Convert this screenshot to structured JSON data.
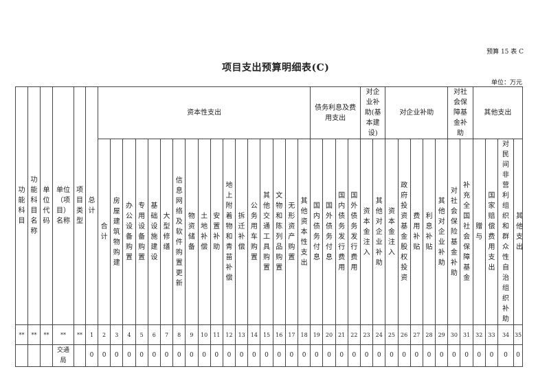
{
  "form_no": "预算 15 表 C",
  "title": "项目支出预算明细表(C)",
  "unit": "单位：万元",
  "fixed_headers": [
    "功能科目",
    "功能科目名称",
    "单位代码",
    "单位（项目）名称",
    "项目类型",
    "总计"
  ],
  "groups": [
    {
      "label": "资本性支出",
      "columns": [
        "合计",
        "房屋建筑物购建",
        "办公设备购置",
        "专用设备购置",
        "基础设施建设",
        "大型修缮",
        "信息网络及软件购置更新",
        "物资储备",
        "土地补偿",
        "安置补助",
        "地上附着物和青苗补偿",
        "拆迁补偿",
        "公务用车购置",
        "其他交通工具购置",
        "文物和陈列品购置",
        "无形资产购置",
        "其他资本性支出"
      ]
    },
    {
      "label": "债务利息及费用支出",
      "columns": [
        "国内债务付息",
        "国外债务付息",
        "国内债务发行费用",
        "国外债务发行费用"
      ]
    },
    {
      "label": "对企业补助(基本建设)",
      "columns": [
        "资本金注入",
        "其他对企业补助"
      ]
    },
    {
      "label": "对企业补助",
      "columns": [
        "资本金注入",
        "政府投资基金股权投资",
        "费用补贴",
        "利息补贴",
        "其他对企业补助"
      ]
    },
    {
      "label": "对社会保障基金补助",
      "columns": [
        "对社会保险基金补助",
        "补充全国社会保障基金"
      ]
    },
    {
      "label": "其他支出",
      "columns": [
        "赠与",
        "国家赔偿费用支出",
        "对民间非营利组织和群众性自治组织补助",
        "其他支出"
      ]
    }
  ],
  "code_row": {
    "markers": [
      "**",
      "**",
      "**",
      "**",
      "**"
    ],
    "numbers": [
      "1",
      "2",
      "3",
      "4",
      "5",
      "6",
      "7",
      "8",
      "9",
      "10",
      "11",
      "12",
      "13",
      "14",
      "15",
      "16",
      "17",
      "18",
      "19",
      "20",
      "21",
      "22",
      "23",
      "24",
      "25",
      "26",
      "27",
      "28",
      "29",
      "30",
      "31",
      "32",
      "33",
      "34",
      "35"
    ]
  },
  "rows": [
    {
      "function_code": "",
      "function_name": "",
      "unit_code": "",
      "unit_name": "交通局",
      "project_type": "",
      "values": [
        "0",
        "0",
        "0",
        "0",
        "0",
        "0",
        "0",
        "0",
        "0",
        "0",
        "0",
        "0",
        "0",
        "0",
        "0",
        "0",
        "0",
        "0",
        "0",
        "0",
        "0",
        "0",
        "0",
        "0",
        "0",
        "0",
        "0",
        "0",
        "0",
        "0",
        "0",
        "0",
        "0",
        "0",
        "0"
      ]
    }
  ]
}
